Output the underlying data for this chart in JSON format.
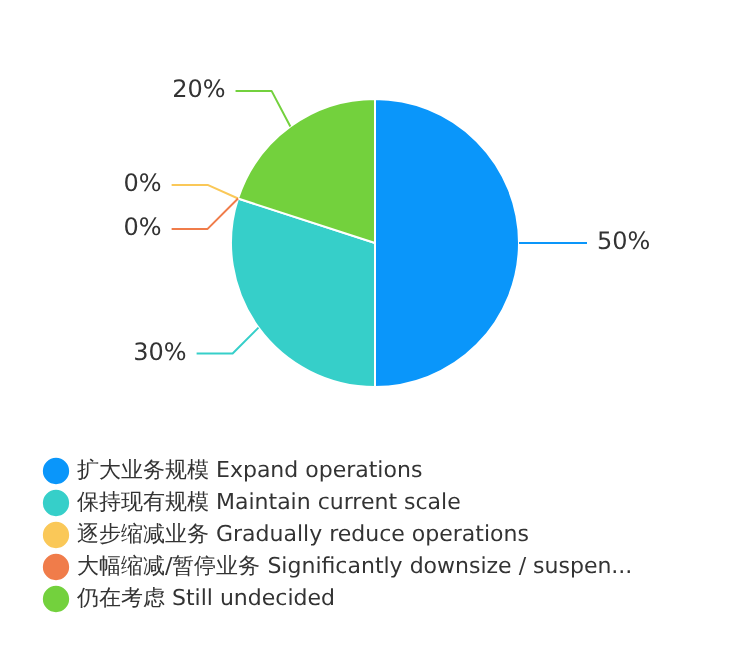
{
  "chart_data": {
    "type": "pie",
    "categories": [
      "扩大业务规模 Expand operations",
      "保持现有规模 Maintain current scale",
      "逐步缩减业务 Gradually reduce operations",
      "大幅缩减/暂停业务 Significantly downsize / suspen...",
      "仍在考虑 Still undecided"
    ],
    "values": [
      50,
      30,
      0,
      0,
      20
    ],
    "colors": [
      "#0a96fa",
      "#36cfc9",
      "#fac858",
      "#f07c4a",
      "#73d13d"
    ],
    "value_labels": [
      "50%",
      "30%",
      "0%",
      "0%",
      "20%"
    ],
    "legend": "bottom left"
  }
}
